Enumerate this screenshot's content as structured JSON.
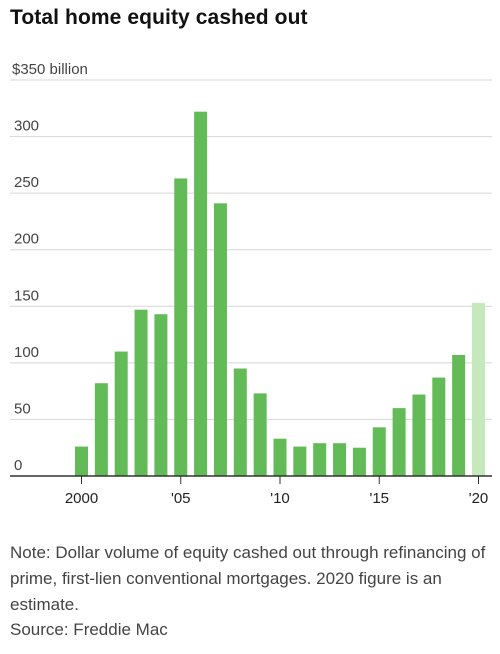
{
  "chart_data": {
    "type": "bar",
    "title": "Total home equity cashed out",
    "ylabel": "$350 billion",
    "ylim": [
      0,
      350
    ],
    "y_ticks": [
      "300",
      "250",
      "200",
      "150",
      "100",
      "50",
      "0"
    ],
    "y_tick_values": [
      300,
      250,
      200,
      150,
      100,
      50,
      0
    ],
    "x_tick_labels": [
      {
        "year": 2000,
        "label": "2000"
      },
      {
        "year": 2005,
        "label": "'05"
      },
      {
        "year": 2010,
        "label": "'10"
      },
      {
        "year": 2015,
        "label": "'15"
      },
      {
        "year": 2020,
        "label": "'20"
      }
    ],
    "categories": [
      2000,
      2001,
      2002,
      2003,
      2004,
      2005,
      2006,
      2007,
      2008,
      2009,
      2010,
      2011,
      2012,
      2013,
      2014,
      2015,
      2016,
      2017,
      2018,
      2019,
      2020
    ],
    "values": [
      26,
      82,
      110,
      147,
      143,
      263,
      322,
      241,
      95,
      73,
      33,
      26,
      29,
      29,
      25,
      43,
      60,
      72,
      87,
      107,
      153
    ],
    "estimate_years": [
      2020
    ],
    "colors": {
      "bar": "#62bb56",
      "estimate": "#c5e8bd",
      "grid": "#d6d6d6",
      "axis": "#333333"
    },
    "grid": true,
    "legend": "none",
    "note": "Note: Dollar volume of equity cashed out through refinancing of prime, first-lien conventional mortgages. 2020 figure is an estimate.",
    "source": "Source: Freddie Mac"
  }
}
